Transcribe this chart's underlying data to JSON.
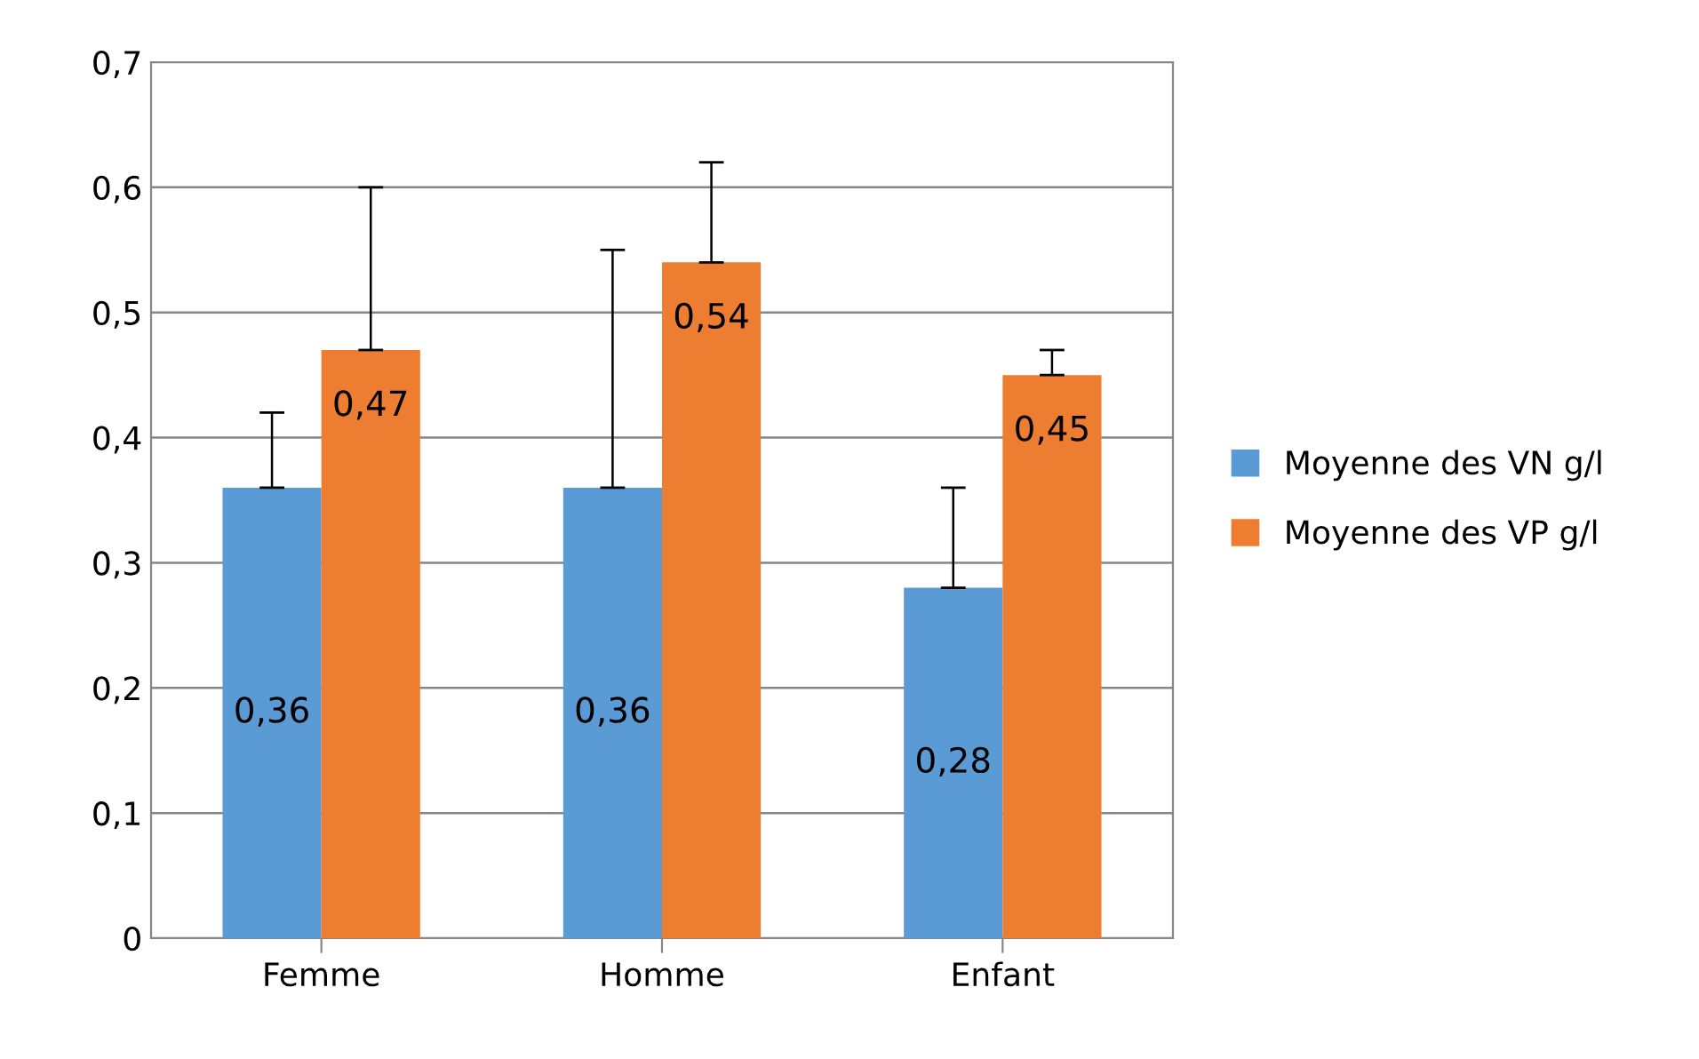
{
  "chart_data": {
    "type": "bar",
    "categories": [
      "Femme",
      "Homme",
      "Enfant"
    ],
    "series": [
      {
        "name": "Moyenne des VN g/l",
        "color": "#5b9bd5",
        "values": [
          0.36,
          0.36,
          0.28
        ],
        "errors": [
          [
            0.36,
            0.42
          ],
          [
            0.36,
            0.55
          ],
          [
            0.28,
            0.36
          ]
        ],
        "value_labels": [
          "0,36",
          "0,36",
          "0,28"
        ]
      },
      {
        "name": "Moyenne des VP g/l",
        "color": "#ed7d31",
        "values": [
          0.47,
          0.54,
          0.45
        ],
        "errors": [
          [
            0.47,
            0.6
          ],
          [
            0.54,
            0.62
          ],
          [
            0.45,
            0.47
          ]
        ],
        "value_labels": [
          "0,47",
          "0,54",
          "0,45"
        ]
      }
    ],
    "ylim": [
      0,
      0.7
    ],
    "yticks": [
      0,
      {
        "value": 0.1,
        "label": "0,1"
      },
      {
        "value": 0.2,
        "label": "0,2"
      },
      {
        "value": 0.3,
        "label": "0,3"
      },
      {
        "value": 0.4,
        "label": "0,4"
      },
      {
        "value": 0.5,
        "label": "0,5"
      },
      {
        "value": 0.6,
        "label": "0,6"
      },
      {
        "value": 0.7,
        "label": "0,7"
      }
    ],
    "grid": "y",
    "legend": "right"
  }
}
